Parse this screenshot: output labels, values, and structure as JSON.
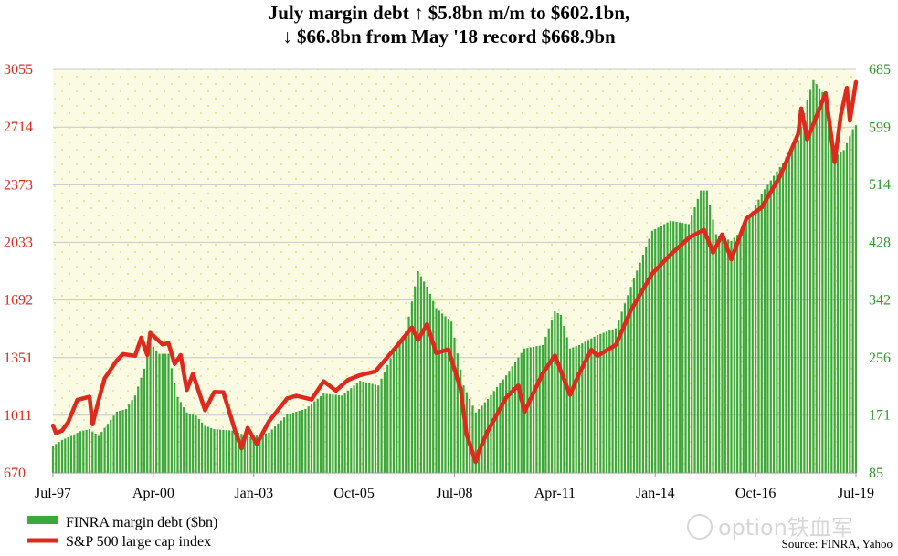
{
  "header": {
    "title_line1": "July margin debt ↑ $5.8bn m/m to $602.1bn,",
    "title_line2": "↓ $66.8bn from May '18 record $668.9bn"
  },
  "source": "Source: FINRA, Yahoo",
  "watermark": "option铁血军",
  "colors": {
    "bars": "#3aa83a",
    "line": "#dd2a1c",
    "plot_bg": "#fbfbe4",
    "dots": "#e4e49a",
    "left_axis": "#dd2a1c",
    "right_axis": "#2f9a2f"
  },
  "chart_data": {
    "type": "bar+line",
    "x_tick_labels": [
      "Jul-97",
      "Apr-00",
      "Jan-03",
      "Oct-05",
      "Jul-08",
      "Apr-11",
      "Jan-14",
      "Oct-16",
      "Jul-19"
    ],
    "y_left": {
      "ticks": [
        670,
        1011,
        1351,
        1692,
        2033,
        2373,
        2714,
        3055
      ],
      "range": [
        670,
        3055
      ]
    },
    "y_right": {
      "ticks": [
        85,
        171,
        256,
        342,
        428,
        514,
        599,
        685
      ],
      "range": [
        85,
        685
      ]
    },
    "legend": [
      "FINRA margin debt ($bn)",
      "S&P 500 large cap index"
    ],
    "series": [
      {
        "name": "FINRA margin debt ($bn)",
        "axis": "right",
        "type": "bar",
        "points": [
          [
            "1997-07",
            125
          ],
          [
            "1997-10",
            134
          ],
          [
            "1998-01",
            140
          ],
          [
            "1998-04",
            147
          ],
          [
            "1998-07",
            150
          ],
          [
            "1998-10",
            140
          ],
          [
            "1999-01",
            158
          ],
          [
            "1999-04",
            176
          ],
          [
            "1999-07",
            180
          ],
          [
            "1999-10",
            200
          ],
          [
            "2000-01",
            240
          ],
          [
            "2000-03",
            278
          ],
          [
            "2000-06",
            262
          ],
          [
            "2000-09",
            262
          ],
          [
            "2000-12",
            198
          ],
          [
            "2001-03",
            175
          ],
          [
            "2001-06",
            170
          ],
          [
            "2001-09",
            155
          ],
          [
            "2001-12",
            150
          ],
          [
            "2002-06",
            148
          ],
          [
            "2002-12",
            138
          ],
          [
            "2003-06",
            145
          ],
          [
            "2003-12",
            172
          ],
          [
            "2004-06",
            180
          ],
          [
            "2004-12",
            203
          ],
          [
            "2005-06",
            200
          ],
          [
            "2005-12",
            222
          ],
          [
            "2006-06",
            215
          ],
          [
            "2006-12",
            276
          ],
          [
            "2007-03",
            295
          ],
          [
            "2007-07",
            385
          ],
          [
            "2007-10",
            362
          ],
          [
            "2008-01",
            330
          ],
          [
            "2008-06",
            310
          ],
          [
            "2008-10",
            215
          ],
          [
            "2009-02",
            175
          ],
          [
            "2009-06",
            195
          ],
          [
            "2009-12",
            230
          ],
          [
            "2010-06",
            270
          ],
          [
            "2010-12",
            275
          ],
          [
            "2011-04",
            325
          ],
          [
            "2011-06",
            320
          ],
          [
            "2011-09",
            270
          ],
          [
            "2011-12",
            275
          ],
          [
            "2012-06",
            290
          ],
          [
            "2012-12",
            300
          ],
          [
            "2013-06",
            374
          ],
          [
            "2013-12",
            445
          ],
          [
            "2014-06",
            460
          ],
          [
            "2014-12",
            455
          ],
          [
            "2015-04",
            505
          ],
          [
            "2015-06",
            505
          ],
          [
            "2015-09",
            440
          ],
          [
            "2016-02",
            430
          ],
          [
            "2016-06",
            448
          ],
          [
            "2016-12",
            500
          ],
          [
            "2017-06",
            540
          ],
          [
            "2017-12",
            580
          ],
          [
            "2018-03",
            640
          ],
          [
            "2018-05",
            669
          ],
          [
            "2018-09",
            645
          ],
          [
            "2018-12",
            555
          ],
          [
            "2019-03",
            565
          ],
          [
            "2019-06",
            596
          ],
          [
            "2019-07",
            602
          ]
        ]
      },
      {
        "name": "S&P 500 large cap index",
        "axis": "left",
        "type": "line",
        "points": [
          [
            "1997-07",
            950
          ],
          [
            "1997-08",
            905
          ],
          [
            "1997-10",
            920
          ],
          [
            "1997-12",
            970
          ],
          [
            "1998-03",
            1101
          ],
          [
            "1998-07",
            1120
          ],
          [
            "1998-08",
            957
          ],
          [
            "1998-10",
            1098
          ],
          [
            "1998-12",
            1229
          ],
          [
            "1999-04",
            1335
          ],
          [
            "1999-06",
            1372
          ],
          [
            "1999-10",
            1362
          ],
          [
            "1999-12",
            1469
          ],
          [
            "2000-02",
            1366
          ],
          [
            "2000-03",
            1498
          ],
          [
            "2000-07",
            1430
          ],
          [
            "2000-09",
            1436
          ],
          [
            "2000-11",
            1314
          ],
          [
            "2001-01",
            1366
          ],
          [
            "2001-03",
            1160
          ],
          [
            "2001-05",
            1255
          ],
          [
            "2001-09",
            1040
          ],
          [
            "2001-12",
            1148
          ],
          [
            "2002-03",
            1147
          ],
          [
            "2002-07",
            911
          ],
          [
            "2002-09",
            815
          ],
          [
            "2002-11",
            936
          ],
          [
            "2003-02",
            841
          ],
          [
            "2003-06",
            975
          ],
          [
            "2003-12",
            1111
          ],
          [
            "2004-03",
            1126
          ],
          [
            "2004-08",
            1104
          ],
          [
            "2004-12",
            1212
          ],
          [
            "2005-04",
            1156
          ],
          [
            "2005-08",
            1220
          ],
          [
            "2005-12",
            1248
          ],
          [
            "2006-05",
            1270
          ],
          [
            "2006-12",
            1418
          ],
          [
            "2007-05",
            1530
          ],
          [
            "2007-07",
            1455
          ],
          [
            "2007-10",
            1549
          ],
          [
            "2008-01",
            1378
          ],
          [
            "2008-05",
            1400
          ],
          [
            "2008-09",
            1166
          ],
          [
            "2008-11",
            896
          ],
          [
            "2009-02",
            735
          ],
          [
            "2009-03",
            797
          ],
          [
            "2009-06",
            919
          ],
          [
            "2009-12",
            1115
          ],
          [
            "2010-04",
            1187
          ],
          [
            "2010-06",
            1031
          ],
          [
            "2010-12",
            1258
          ],
          [
            "2011-04",
            1364
          ],
          [
            "2011-09",
            1131
          ],
          [
            "2011-12",
            1258
          ],
          [
            "2012-04",
            1398
          ],
          [
            "2012-06",
            1362
          ],
          [
            "2012-12",
            1426
          ],
          [
            "2013-05",
            1631
          ],
          [
            "2013-12",
            1848
          ],
          [
            "2014-06",
            1960
          ],
          [
            "2014-12",
            2059
          ],
          [
            "2015-05",
            2107
          ],
          [
            "2015-08",
            1972
          ],
          [
            "2015-11",
            2080
          ],
          [
            "2016-02",
            1932
          ],
          [
            "2016-07",
            2174
          ],
          [
            "2016-12",
            2239
          ],
          [
            "2017-06",
            2423
          ],
          [
            "2017-12",
            2674
          ],
          [
            "2018-01",
            2824
          ],
          [
            "2018-03",
            2641
          ],
          [
            "2018-09",
            2914
          ],
          [
            "2018-12",
            2507
          ],
          [
            "2019-02",
            2784
          ],
          [
            "2019-04",
            2946
          ],
          [
            "2019-05",
            2752
          ],
          [
            "2019-07",
            2980
          ]
        ]
      }
    ]
  }
}
